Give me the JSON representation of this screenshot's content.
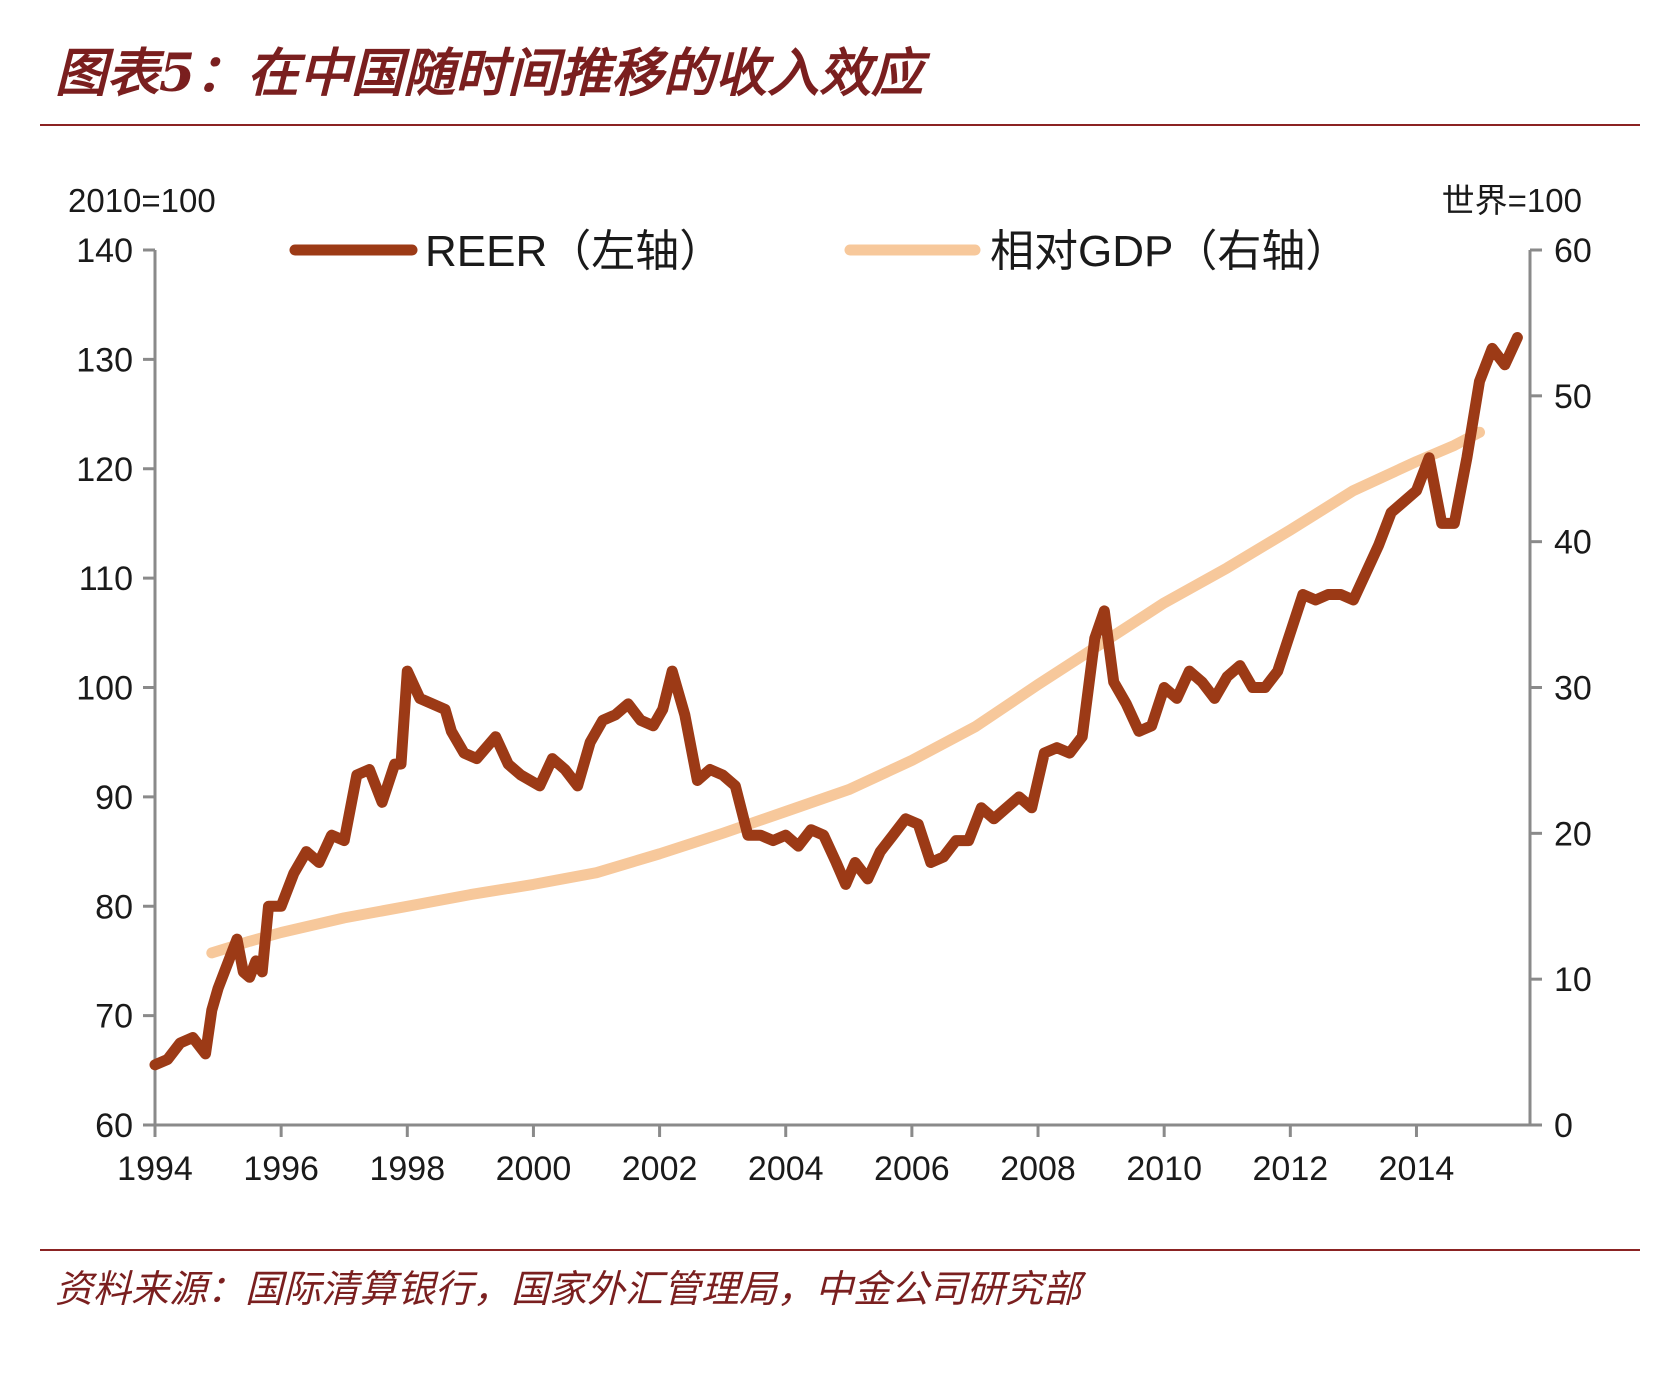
{
  "title": "图表5：在中国随时间推移的收入效应",
  "source": "资料来源：国际清算银行，国家外汇管理局，中金公司研究部",
  "colors": {
    "title": "#7a1f1f",
    "rule": "#8b2323",
    "reer": "#9c3a16",
    "gdp": "#f7c89b",
    "axis": "#8a8a8a"
  },
  "chart_data": {
    "type": "line",
    "legend_position": "top",
    "left_axis": {
      "label": "2010=100",
      "ylim": [
        60,
        140
      ],
      "ticks": [
        "60",
        "70",
        "80",
        "90",
        "100",
        "110",
        "120",
        "130",
        "140"
      ]
    },
    "right_axis": {
      "label": "世界=100",
      "ylim": [
        0,
        60
      ],
      "ticks": [
        "0",
        "10",
        "20",
        "30",
        "40",
        "50",
        "60"
      ]
    },
    "x_axis": {
      "xlim": [
        1994,
        2015.8
      ],
      "ticks": [
        "1994",
        "1996",
        "1998",
        "2000",
        "2002",
        "2004",
        "2006",
        "2008",
        "2010",
        "2012",
        "2014"
      ]
    },
    "series": [
      {
        "name": "REER",
        "legend": "REER（左轴）",
        "axis": "left",
        "color": "#9c3a16",
        "x": [
          1994.0,
          1994.2,
          1994.4,
          1994.6,
          1994.8,
          1994.9,
          1995.0,
          1995.1,
          1995.3,
          1995.4,
          1995.5,
          1995.6,
          1995.7,
          1995.8,
          1996.0,
          1996.2,
          1996.4,
          1996.6,
          1996.8,
          1997.0,
          1997.2,
          1997.4,
          1997.6,
          1997.8,
          1997.9,
          1998.0,
          1998.2,
          1998.4,
          1998.6,
          1998.7,
          1998.9,
          1999.1,
          1999.4,
          1999.6,
          1999.8,
          2000.1,
          2000.3,
          2000.5,
          2000.7,
          2000.9,
          2001.1,
          2001.3,
          2001.5,
          2001.7,
          2001.9,
          2002.05,
          2002.2,
          2002.4,
          2002.6,
          2002.8,
          2003.0,
          2003.2,
          2003.4,
          2003.6,
          2003.8,
          2004.0,
          2004.2,
          2004.4,
          2004.6,
          2004.8,
          2004.95,
          2005.1,
          2005.3,
          2005.5,
          2005.7,
          2005.9,
          2006.1,
          2006.3,
          2006.5,
          2006.7,
          2006.9,
          2007.1,
          2007.3,
          2007.5,
          2007.7,
          2007.9,
          2008.1,
          2008.3,
          2008.5,
          2008.7,
          2008.9,
          2009.05,
          2009.2,
          2009.4,
          2009.6,
          2009.8,
          2010.0,
          2010.2,
          2010.4,
          2010.6,
          2010.8,
          2011.0,
          2011.2,
          2011.4,
          2011.6,
          2011.8,
          2012.0,
          2012.2,
          2012.4,
          2012.6,
          2012.8,
          2013.0,
          2013.2,
          2013.4,
          2013.6,
          2013.8,
          2014.0,
          2014.2,
          2014.4,
          2014.6,
          2014.8,
          2015.0,
          2015.2,
          2015.4,
          2015.6
        ],
        "values": [
          65.5,
          66.0,
          67.5,
          68.0,
          66.5,
          70.5,
          72.5,
          74.0,
          77.0,
          74.0,
          73.5,
          75.0,
          74.0,
          80.0,
          80.0,
          83.0,
          85.0,
          84.0,
          86.5,
          86.0,
          92.0,
          92.5,
          89.5,
          93.0,
          93.0,
          101.5,
          99.0,
          98.5,
          98.0,
          96.0,
          94.0,
          93.5,
          95.5,
          93.0,
          92.0,
          91.0,
          93.5,
          92.5,
          91.0,
          95.0,
          97.0,
          97.5,
          98.5,
          97.0,
          96.5,
          98.0,
          101.5,
          97.5,
          91.5,
          92.5,
          92.0,
          91.0,
          86.5,
          86.5,
          86.0,
          86.5,
          85.5,
          87.0,
          86.5,
          84.0,
          82.0,
          84.0,
          82.5,
          85.0,
          86.5,
          88.0,
          87.5,
          84.0,
          84.5,
          86.0,
          86.0,
          89.0,
          88.0,
          89.0,
          90.0,
          89.0,
          94.0,
          94.5,
          94.0,
          95.5,
          104.5,
          107.0,
          100.5,
          98.5,
          96.0,
          96.5,
          100.0,
          99.0,
          101.5,
          100.5,
          99.0,
          101.0,
          102.0,
          100.0,
          100.0,
          101.5,
          105.0,
          108.5,
          108.0,
          108.5,
          108.5,
          108.0,
          110.5,
          113.0,
          116.0,
          117.0,
          118.0,
          121.0,
          115.0,
          115.0,
          121.0,
          128.0,
          131.0,
          129.5,
          132.0
        ]
      },
      {
        "name": "相对GDP",
        "legend": "相对GDP（右轴）",
        "axis": "right",
        "color": "#f7c89b",
        "x": [
          1994.9,
          1995.5,
          1996.0,
          1997.0,
          1998.0,
          1999.0,
          2000.0,
          2001.0,
          2002.0,
          2003.0,
          2004.0,
          2005.0,
          2006.0,
          2007.0,
          2008.0,
          2009.0,
          2010.0,
          2011.0,
          2012.0,
          2013.0,
          2014.0,
          2014.6,
          2015.0
        ],
        "values": [
          11.8,
          12.6,
          13.2,
          14.2,
          15.0,
          15.8,
          16.5,
          17.3,
          18.6,
          20.0,
          21.5,
          23.0,
          25.0,
          27.3,
          30.2,
          33.0,
          35.8,
          38.2,
          40.8,
          43.5,
          45.5,
          46.6,
          47.5
        ]
      }
    ]
  }
}
